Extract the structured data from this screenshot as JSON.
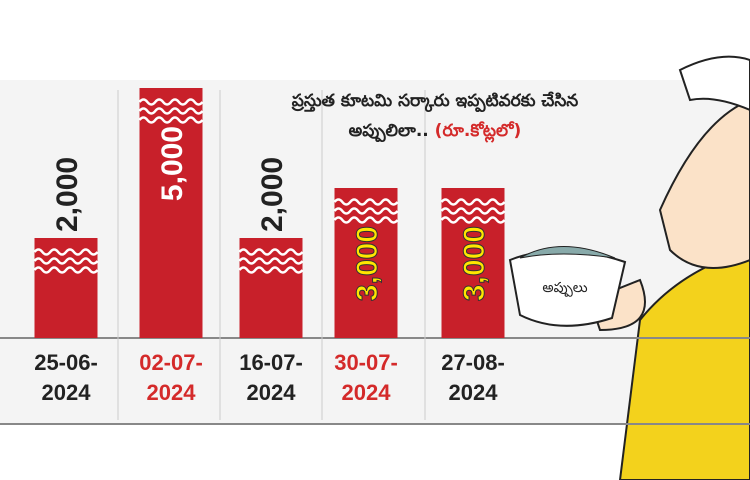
{
  "chart_data": {
    "type": "bar",
    "title": "ప్రస్తుత కూటమి సర్కారు ఇప్పటివరకు చేసిన అప్పులిలా..",
    "subtitle": "(రూ.కోట్లలో)",
    "annotation": "అప్పులు",
    "categories": [
      "25-06-2024",
      "02-07-2024",
      "16-07-2024",
      "30-07-2024",
      "27-08-2024"
    ],
    "values": [
      2000,
      5000,
      2000,
      3000,
      3000
    ],
    "value_labels": [
      "2,000",
      "5,000",
      "2,000",
      "3,000",
      "3,000"
    ],
    "color": "#c8202a",
    "category_colors": [
      "#222222",
      "#d42a2a",
      "#222222",
      "#d42a2a",
      "#222222"
    ],
    "value_label_colors": [
      "#222222",
      "#ffffff",
      "#222222",
      "#ffe600",
      "#ffe600"
    ]
  }
}
